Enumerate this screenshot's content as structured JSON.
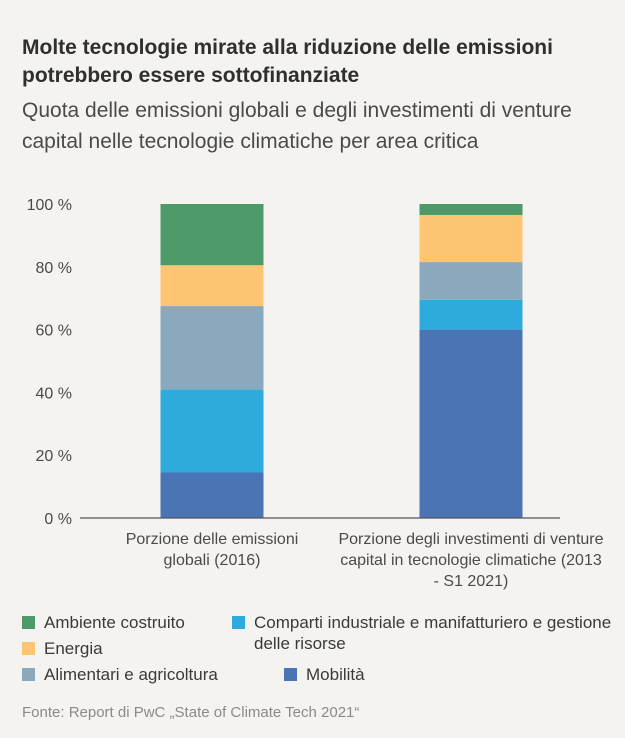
{
  "title": "Molte tecnologie mirate alla riduzione delle emissioni potrebbero essere sottofinanziate",
  "subtitle": "Quota delle emissioni globali e degli investimenti di venture capital nelle tecnologie climatiche per area critica",
  "source": "Fonte: Report di PwC „State of Climate Tech 2021“",
  "chart_data": {
    "type": "bar",
    "stacked": true,
    "title": "Quota delle emissioni globali e degli investimenti di venture capital nelle tecnologie climatiche per area critica",
    "categories": [
      "Porzione delle emissioni globali (2016)",
      "Porzione degli investimenti di venture capital in tecnologie climatiche (2013 - S1 2021)"
    ],
    "yticks": [
      "0 %",
      "20 %",
      "40 %",
      "60 %",
      "80 %",
      "100 %"
    ],
    "ylim": [
      0,
      100
    ],
    "ylabel": "",
    "xlabel": "",
    "legend_position": "bottom",
    "series": [
      {
        "name": "Mobilità",
        "color": "#4a74b4",
        "values": [
          14.5,
          60
        ]
      },
      {
        "name": "Comparti industriale e manifatturiero e gestione delle risorse",
        "color": "#2eabdc",
        "values": [
          26.5,
          9.5
        ]
      },
      {
        "name": "Alimentari e agricoltura",
        "color": "#8aa9bd",
        "values": [
          26.5,
          12
        ]
      },
      {
        "name": "Energia",
        "color": "#fdc472",
        "values": [
          13,
          15
        ]
      },
      {
        "name": "Ambiente costruito",
        "color": "#4e9969",
        "values": [
          19.5,
          3.5
        ]
      }
    ]
  },
  "legend": [
    {
      "label": "Ambiente costruito",
      "color": "#4e9969"
    },
    {
      "label": "Comparti industriale e manifatturiero e gestione delle risorse",
      "color": "#2eabdc"
    },
    {
      "label": "Energia",
      "color": "#fdc472"
    },
    {
      "label": "Alimentari e agricoltura",
      "color": "#8aa9bd"
    },
    {
      "label": "Mobilità",
      "color": "#4a74b4"
    }
  ]
}
